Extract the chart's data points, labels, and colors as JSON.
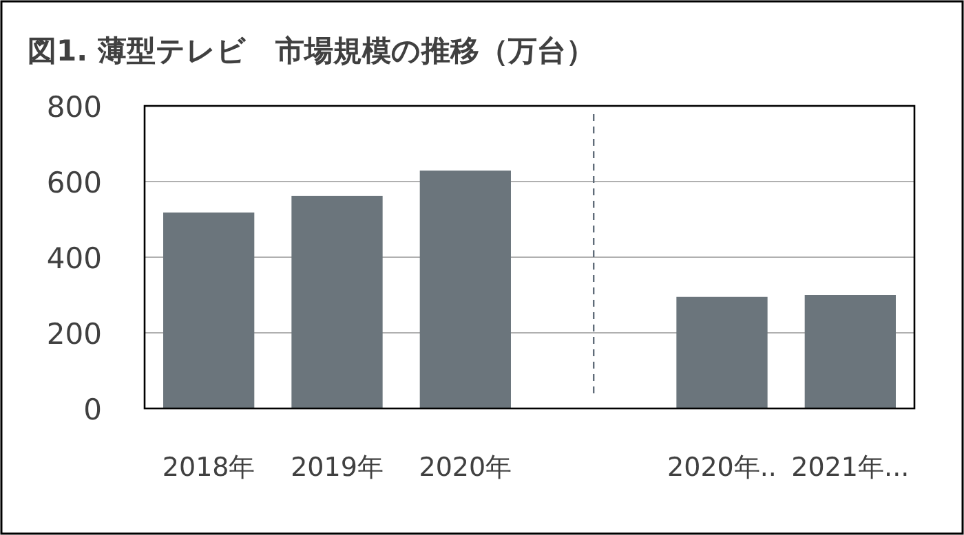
{
  "chart_data": {
    "type": "bar",
    "title": "図1. 薄型テレビ　市場規模の推移（万台）",
    "categories": [
      "2018年",
      "2019年",
      "2020年",
      null,
      "2020年..",
      "2021年..."
    ],
    "values": [
      518,
      562,
      629,
      null,
      295,
      300
    ],
    "color": "#6b757c",
    "ylim": [
      0,
      800
    ],
    "yticks": [
      0,
      200,
      400,
      600,
      800
    ],
    "grid": "y"
  }
}
